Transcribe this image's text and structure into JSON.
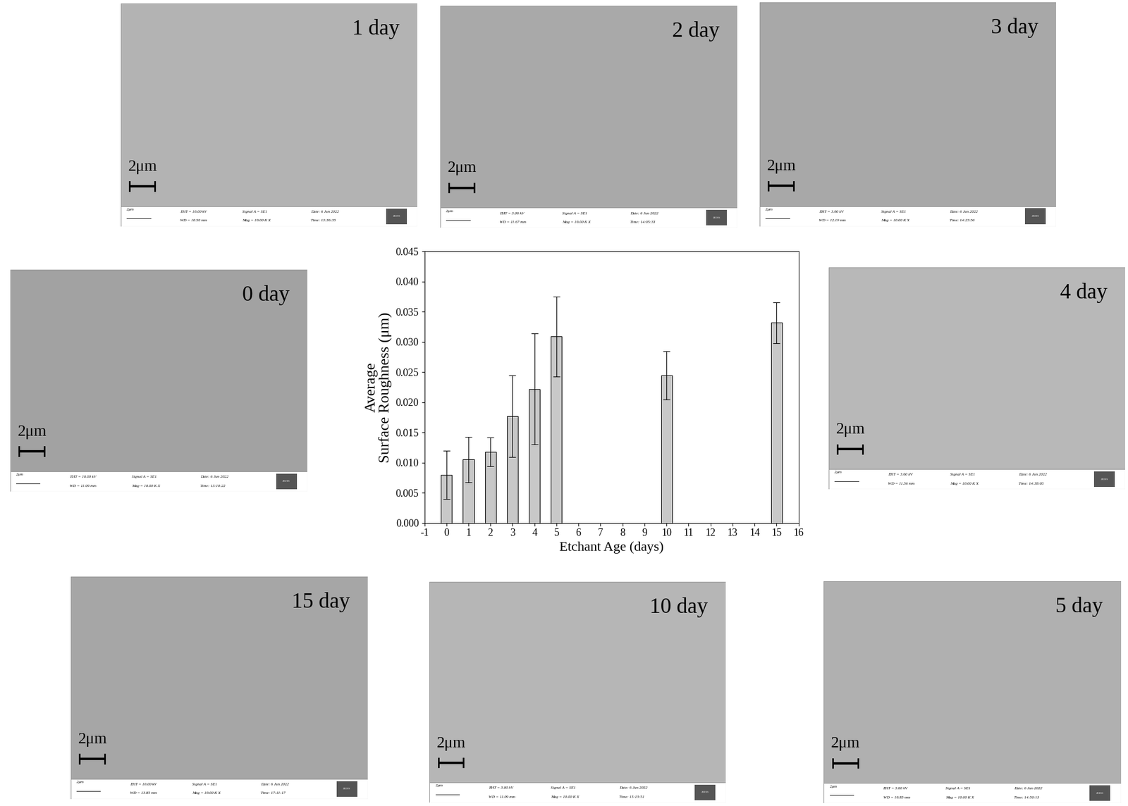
{
  "chart_data": {
    "type": "bar",
    "x": [
      0,
      1,
      2,
      3,
      4,
      5,
      10,
      15
    ],
    "values": [
      0.008,
      0.0105,
      0.0118,
      0.0177,
      0.0222,
      0.0309,
      0.0245,
      0.0332
    ],
    "errors": [
      0.004,
      0.0038,
      0.0024,
      0.0068,
      0.0092,
      0.0066,
      0.004,
      0.0034
    ],
    "color": "#c8c8c8",
    "x_label": "Etchant Age (days)",
    "y_label": "Average\nSurface Roughness (μm)",
    "xlim": [
      -1,
      16
    ],
    "xticks": [
      -1,
      0,
      1,
      2,
      3,
      4,
      5,
      6,
      7,
      8,
      9,
      10,
      11,
      12,
      13,
      14,
      15,
      16
    ],
    "ylim": [
      0,
      0.045
    ],
    "yticks": [
      {
        "value": 0,
        "label": "0.000"
      },
      {
        "value": 0.005,
        "label": "0.005"
      },
      {
        "value": 0.01,
        "label": "0.010"
      },
      {
        "value": 0.015,
        "label": "0.015"
      },
      {
        "value": 0.02,
        "label": "0.020"
      },
      {
        "value": 0.025,
        "label": "0.025"
      },
      {
        "value": 0.03,
        "label": "0.030"
      },
      {
        "value": 0.035,
        "label": "0.035"
      },
      {
        "value": 0.04,
        "label": "0.040"
      },
      {
        "value": 0.045,
        "label": "0.045"
      }
    ],
    "grid": false
  },
  "panels": [
    {
      "label": "1 day",
      "scale": "2μm",
      "eht": "EHT = 10.00 kV",
      "wd": "WD = 10.50 mm",
      "signal": "Signal A = SE1",
      "mag": "Mag = 10.00 K X",
      "date": "Date: 6 Jun 2022",
      "time": "Time: 13:36:35",
      "logo": "ZEISS",
      "color": "#b3b3b3"
    },
    {
      "label": "2 day",
      "scale": "2μm",
      "eht": "EHT = 3.00 kV",
      "wd": "WD = 11.67 mm",
      "signal": "Signal A = SE1",
      "mag": "Mag = 10.00 K X",
      "date": "Date: 6 Jun 2022",
      "time": "Time: 14:05:33",
      "logo": "ZEISS",
      "color": "#a9a9a9"
    },
    {
      "label": "3 day",
      "scale": "2μm",
      "eht": "EHT = 3.00 kV",
      "wd": "WD = 12.19 mm",
      "signal": "Signal A = SE1",
      "mag": "Mag = 10.00 K X",
      "date": "Date: 6 Jun 2022",
      "time": "Time: 14:23:56",
      "logo": "ZEISS",
      "color": "#a8a8a8"
    },
    {
      "label": "0 day",
      "scale": "2μm",
      "eht": "EHT = 10.00 kV",
      "wd": "WD = 11.09 mm",
      "signal": "Signal A = SE1",
      "mag": "Mag = 10.00 K X",
      "date": "Date: 6 Jun 2022",
      "time": "Time: 13:10:22",
      "logo": "ZEISS",
      "color": "#a2a2a2"
    },
    {
      "label": "4 day",
      "scale": "2μm",
      "eht": "EHT = 3.00 kV",
      "wd": "WD = 11.56 mm",
      "signal": "Signal A = SE1",
      "mag": "Mag = 10.00 K X",
      "date": "Date: 6 Jun 2022",
      "time": "Time: 14:38:05",
      "logo": "ZEISS",
      "color": "#b8b8b8"
    },
    {
      "label": "15 day",
      "scale": "2μm",
      "eht": "EHT = 10.00 kV",
      "wd": "WD = 13.85 mm",
      "signal": "Signal A = SE1",
      "mag": "Mag = 10.00 K X",
      "date": "Date: 6 Jun 2022",
      "time": "Time: 17:11:17",
      "logo": "ZEISS",
      "color": "#a6a6a6"
    },
    {
      "label": "10 day",
      "scale": "2μm",
      "eht": "EHT = 3.00 kV",
      "wd": "WD = 11.09 mm",
      "signal": "Signal A = SE1",
      "mag": "Mag = 10.00 K X",
      "date": "Date: 6 Jun 2022",
      "time": "Time: 15:13:51",
      "logo": "ZEISS",
      "color": "#b6b6b6"
    },
    {
      "label": "5 day",
      "scale": "2μm",
      "eht": "EHT = 3.00 kV",
      "wd": "WD = 10.85 mm",
      "signal": "Signal A = SE1",
      "mag": "Mag = 10.00 K X",
      "date": "Date: 6 Jun 2022",
      "time": "Time: 14:50:13",
      "logo": "ZEISS",
      "color": "#b0b0b0"
    }
  ]
}
